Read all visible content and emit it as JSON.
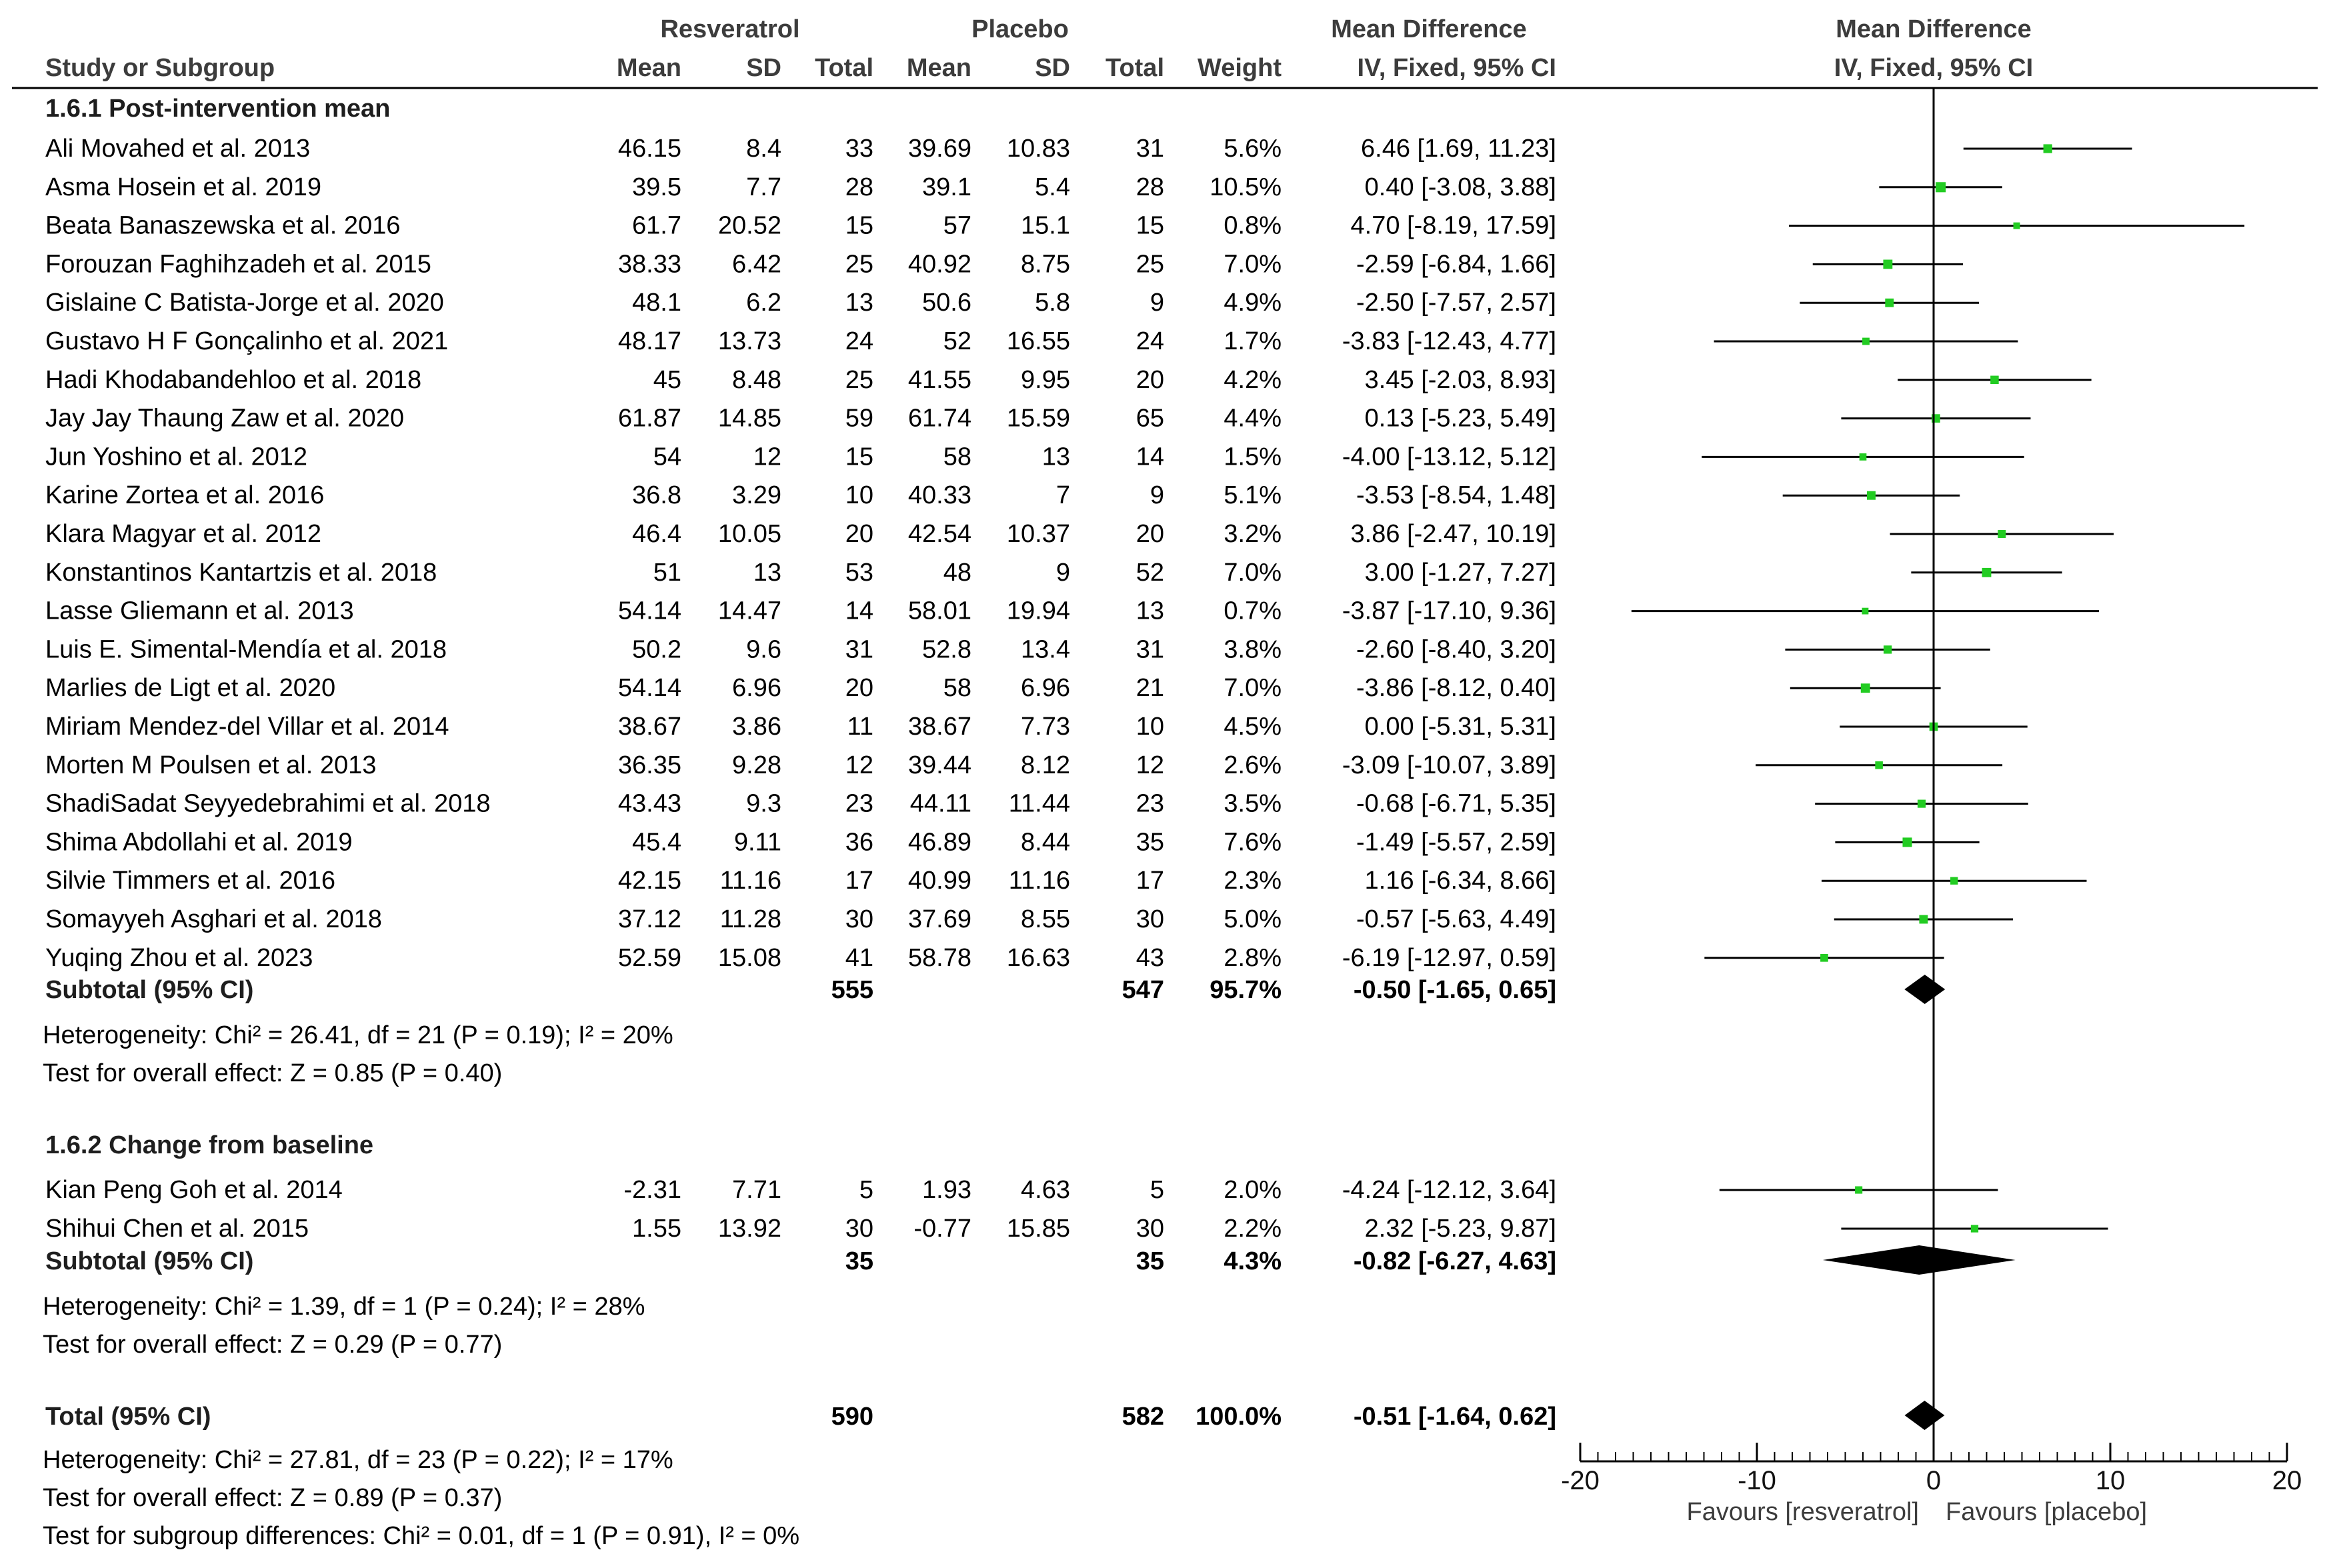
{
  "headers": {
    "study": "Study or Subgroup",
    "exp_group": "Resveratrol",
    "ctrl_group": "Placebo",
    "mean": "Mean",
    "sd": "SD",
    "total": "Total",
    "weight": "Weight",
    "md_col_title": "Mean Difference",
    "md_col_method": "IV, Fixed, 95% CI",
    "plot_title": "Mean Difference",
    "plot_method": "IV, Fixed, 95% CI"
  },
  "chart_data": {
    "type": "forest",
    "title": "Mean Difference",
    "xlabel": "",
    "xlim": [
      -20,
      20
    ],
    "ticks": [
      -20,
      -10,
      0,
      10,
      20
    ],
    "tick_labels": [
      "-20",
      "-10",
      "0",
      "10",
      "20"
    ],
    "favours_left": "Favours [resveratrol]",
    "favours_right": "Favours [placebo]",
    "subgroups": [
      {
        "name": "1.6.1 Post-intervention mean",
        "studies": [
          {
            "name": "Ali Movahed et al. 2013",
            "e_mean": "46.15",
            "e_sd": "8.4",
            "e_total": "33",
            "c_mean": "39.69",
            "c_sd": "10.83",
            "c_total": "31",
            "weight": "5.6%",
            "ci_text": "6.46 [1.69, 11.23]",
            "md": 6.46,
            "lo": 1.69,
            "hi": 11.23
          },
          {
            "name": "Asma Hosein et al. 2019",
            "e_mean": "39.5",
            "e_sd": "7.7",
            "e_total": "28",
            "c_mean": "39.1",
            "c_sd": "5.4",
            "c_total": "28",
            "weight": "10.5%",
            "ci_text": "0.40 [-3.08, 3.88]",
            "md": 0.4,
            "lo": -3.08,
            "hi": 3.88
          },
          {
            "name": "Beata Banaszewska et al. 2016",
            "e_mean": "61.7",
            "e_sd": "20.52",
            "e_total": "15",
            "c_mean": "57",
            "c_sd": "15.1",
            "c_total": "15",
            "weight": "0.8%",
            "ci_text": "4.70 [-8.19, 17.59]",
            "md": 4.7,
            "lo": -8.19,
            "hi": 17.59
          },
          {
            "name": "Forouzan Faghihzadeh et al. 2015",
            "e_mean": "38.33",
            "e_sd": "6.42",
            "e_total": "25",
            "c_mean": "40.92",
            "c_sd": "8.75",
            "c_total": "25",
            "weight": "7.0%",
            "ci_text": "-2.59 [-6.84, 1.66]",
            "md": -2.59,
            "lo": -6.84,
            "hi": 1.66
          },
          {
            "name": "Gislaine C Batista-Jorge et al. 2020",
            "e_mean": "48.1",
            "e_sd": "6.2",
            "e_total": "13",
            "c_mean": "50.6",
            "c_sd": "5.8",
            "c_total": "9",
            "weight": "4.9%",
            "ci_text": "-2.50 [-7.57, 2.57]",
            "md": -2.5,
            "lo": -7.57,
            "hi": 2.57
          },
          {
            "name": "Gustavo H F Gonçalinho et al. 2021",
            "e_mean": "48.17",
            "e_sd": "13.73",
            "e_total": "24",
            "c_mean": "52",
            "c_sd": "16.55",
            "c_total": "24",
            "weight": "1.7%",
            "ci_text": "-3.83 [-12.43, 4.77]",
            "md": -3.83,
            "lo": -12.43,
            "hi": 4.77
          },
          {
            "name": "Hadi Khodabandehloo et al. 2018",
            "e_mean": "45",
            "e_sd": "8.48",
            "e_total": "25",
            "c_mean": "41.55",
            "c_sd": "9.95",
            "c_total": "20",
            "weight": "4.2%",
            "ci_text": "3.45 [-2.03, 8.93]",
            "md": 3.45,
            "lo": -2.03,
            "hi": 8.93
          },
          {
            "name": "Jay Jay Thaung Zaw et al. 2020",
            "e_mean": "61.87",
            "e_sd": "14.85",
            "e_total": "59",
            "c_mean": "61.74",
            "c_sd": "15.59",
            "c_total": "65",
            "weight": "4.4%",
            "ci_text": "0.13 [-5.23, 5.49]",
            "md": 0.13,
            "lo": -5.23,
            "hi": 5.49
          },
          {
            "name": "Jun Yoshino et al. 2012",
            "e_mean": "54",
            "e_sd": "12",
            "e_total": "15",
            "c_mean": "58",
            "c_sd": "13",
            "c_total": "14",
            "weight": "1.5%",
            "ci_text": "-4.00 [-13.12, 5.12]",
            "md": -4.0,
            "lo": -13.12,
            "hi": 5.12
          },
          {
            "name": "Karine Zortea et al. 2016",
            "e_mean": "36.8",
            "e_sd": "3.29",
            "e_total": "10",
            "c_mean": "40.33",
            "c_sd": "7",
            "c_total": "9",
            "weight": "5.1%",
            "ci_text": "-3.53 [-8.54, 1.48]",
            "md": -3.53,
            "lo": -8.54,
            "hi": 1.48
          },
          {
            "name": "Klara Magyar et al. 2012",
            "e_mean": "46.4",
            "e_sd": "10.05",
            "e_total": "20",
            "c_mean": "42.54",
            "c_sd": "10.37",
            "c_total": "20",
            "weight": "3.2%",
            "ci_text": "3.86 [-2.47, 10.19]",
            "md": 3.86,
            "lo": -2.47,
            "hi": 10.19
          },
          {
            "name": "Konstantinos Kantartzis et al. 2018",
            "e_mean": "51",
            "e_sd": "13",
            "e_total": "53",
            "c_mean": "48",
            "c_sd": "9",
            "c_total": "52",
            "weight": "7.0%",
            "ci_text": "3.00 [-1.27, 7.27]",
            "md": 3.0,
            "lo": -1.27,
            "hi": 7.27
          },
          {
            "name": "Lasse Gliemann et al. 2013",
            "e_mean": "54.14",
            "e_sd": "14.47",
            "e_total": "14",
            "c_mean": "58.01",
            "c_sd": "19.94",
            "c_total": "13",
            "weight": "0.7%",
            "ci_text": "-3.87 [-17.10, 9.36]",
            "md": -3.87,
            "lo": -17.1,
            "hi": 9.36
          },
          {
            "name": "Luis E. Simental-Mendía et al. 2018",
            "e_mean": "50.2",
            "e_sd": "9.6",
            "e_total": "31",
            "c_mean": "52.8",
            "c_sd": "13.4",
            "c_total": "31",
            "weight": "3.8%",
            "ci_text": "-2.60 [-8.40, 3.20]",
            "md": -2.6,
            "lo": -8.4,
            "hi": 3.2
          },
          {
            "name": "Marlies de Ligt et al. 2020",
            "e_mean": "54.14",
            "e_sd": "6.96",
            "e_total": "20",
            "c_mean": "58",
            "c_sd": "6.96",
            "c_total": "21",
            "weight": "7.0%",
            "ci_text": "-3.86 [-8.12, 0.40]",
            "md": -3.86,
            "lo": -8.12,
            "hi": 0.4
          },
          {
            "name": "Miriam Mendez-del Villar et al. 2014",
            "e_mean": "38.67",
            "e_sd": "3.86",
            "e_total": "11",
            "c_mean": "38.67",
            "c_sd": "7.73",
            "c_total": "10",
            "weight": "4.5%",
            "ci_text": "0.00 [-5.31, 5.31]",
            "md": 0.0,
            "lo": -5.31,
            "hi": 5.31
          },
          {
            "name": "Morten M Poulsen et al. 2013",
            "e_mean": "36.35",
            "e_sd": "9.28",
            "e_total": "12",
            "c_mean": "39.44",
            "c_sd": "8.12",
            "c_total": "12",
            "weight": "2.6%",
            "ci_text": "-3.09 [-10.07, 3.89]",
            "md": -3.09,
            "lo": -10.07,
            "hi": 3.89
          },
          {
            "name": "ShadiSadat Seyyedebrahimi et al. 2018",
            "e_mean": "43.43",
            "e_sd": "9.3",
            "e_total": "23",
            "c_mean": "44.11",
            "c_sd": "11.44",
            "c_total": "23",
            "weight": "3.5%",
            "ci_text": "-0.68 [-6.71, 5.35]",
            "md": -0.68,
            "lo": -6.71,
            "hi": 5.35
          },
          {
            "name": "Shima Abdollahi et al. 2019",
            "e_mean": "45.4",
            "e_sd": "9.11",
            "e_total": "36",
            "c_mean": "46.89",
            "c_sd": "8.44",
            "c_total": "35",
            "weight": "7.6%",
            "ci_text": "-1.49 [-5.57, 2.59]",
            "md": -1.49,
            "lo": -5.57,
            "hi": 2.59
          },
          {
            "name": "Silvie Timmers et al. 2016",
            "e_mean": "42.15",
            "e_sd": "11.16",
            "e_total": "17",
            "c_mean": "40.99",
            "c_sd": "11.16",
            "c_total": "17",
            "weight": "2.3%",
            "ci_text": "1.16 [-6.34, 8.66]",
            "md": 1.16,
            "lo": -6.34,
            "hi": 8.66
          },
          {
            "name": "Somayyeh Asghari et al. 2018",
            "e_mean": "37.12",
            "e_sd": "11.28",
            "e_total": "30",
            "c_mean": "37.69",
            "c_sd": "8.55",
            "c_total": "30",
            "weight": "5.0%",
            "ci_text": "-0.57 [-5.63, 4.49]",
            "md": -0.57,
            "lo": -5.63,
            "hi": 4.49
          },
          {
            "name": "Yuqing Zhou et al. 2023",
            "e_mean": "52.59",
            "e_sd": "15.08",
            "e_total": "41",
            "c_mean": "58.78",
            "c_sd": "16.63",
            "c_total": "43",
            "weight": "2.8%",
            "ci_text": "-6.19 [-12.97, 0.59]",
            "md": -6.19,
            "lo": -12.97,
            "hi": 0.59
          }
        ],
        "subtotal": {
          "label": "Subtotal (95% CI)",
          "e_total": "555",
          "c_total": "547",
          "weight": "95.7%",
          "ci_text": "-0.50 [-1.65, 0.65]",
          "md": -0.5,
          "lo": -1.65,
          "hi": 0.65
        },
        "heterogeneity": "Heterogeneity: Chi² = 26.41, df = 21 (P = 0.19); I² = 20%",
        "overall": "Test for overall effect: Z = 0.85 (P = 0.40)"
      },
      {
        "name": "1.6.2 Change from baseline",
        "studies": [
          {
            "name": "Kian Peng Goh et al. 2014",
            "e_mean": "-2.31",
            "e_sd": "7.71",
            "e_total": "5",
            "c_mean": "1.93",
            "c_sd": "4.63",
            "c_total": "5",
            "weight": "2.0%",
            "ci_text": "-4.24 [-12.12, 3.64]",
            "md": -4.24,
            "lo": -12.12,
            "hi": 3.64
          },
          {
            "name": "Shihui Chen et al. 2015",
            "e_mean": "1.55",
            "e_sd": "13.92",
            "e_total": "30",
            "c_mean": "-0.77",
            "c_sd": "15.85",
            "c_total": "30",
            "weight": "2.2%",
            "ci_text": "2.32 [-5.23, 9.87]",
            "md": 2.32,
            "lo": -5.23,
            "hi": 9.87
          }
        ],
        "subtotal": {
          "label": "Subtotal (95% CI)",
          "e_total": "35",
          "c_total": "35",
          "weight": "4.3%",
          "ci_text": "-0.82 [-6.27, 4.63]",
          "md": -0.82,
          "lo": -6.27,
          "hi": 4.63
        },
        "heterogeneity": "Heterogeneity: Chi² = 1.39, df = 1 (P = 0.24); I² = 28%",
        "overall": "Test for overall effect: Z = 0.29 (P = 0.77)"
      }
    ],
    "total": {
      "label": "Total (95% CI)",
      "e_total": "590",
      "c_total": "582",
      "weight": "100.0%",
      "ci_text": "-0.51 [-1.64, 0.62]",
      "md": -0.51,
      "lo": -1.64,
      "hi": 0.62
    },
    "total_heterogeneity": "Heterogeneity: Chi² = 27.81, df = 23 (P = 0.22); I² = 17%",
    "total_overall": "Test for overall effect: Z = 0.89 (P = 0.37)",
    "subgroup_differences": "Test for subgroup differences: Chi² = 0.01, df = 1 (P = 0.91), I² = 0%",
    "colors": {
      "point": "#22cc22",
      "line": "#000000",
      "diamond": "#000000"
    }
  }
}
